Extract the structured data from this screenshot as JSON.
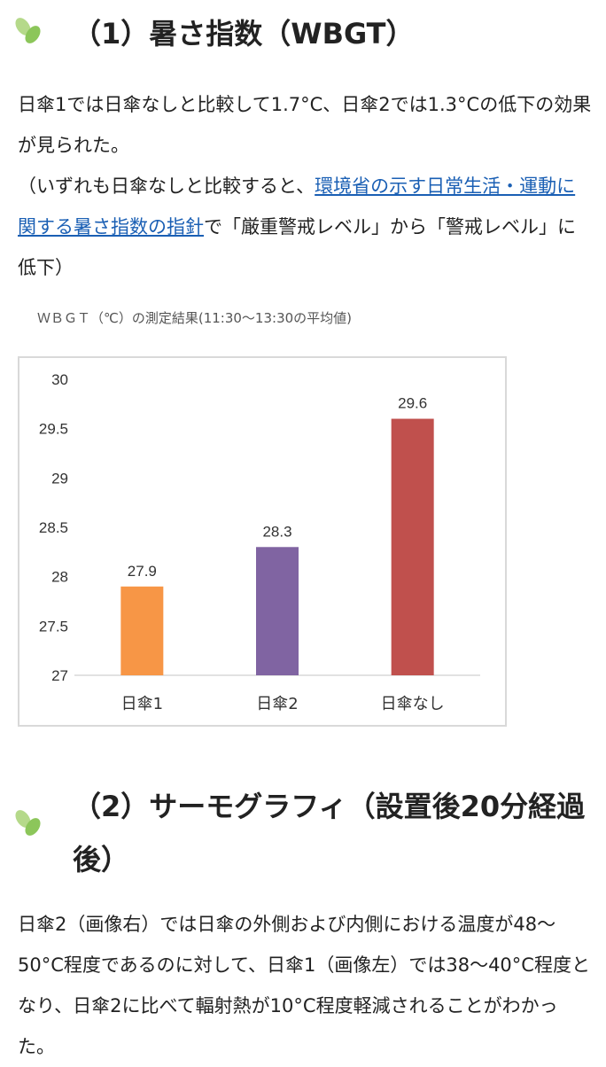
{
  "section1": {
    "heading": "（1）暑さ指数（WBGT）",
    "para_line1": "日傘1では日傘なしと比較して1.7°C、日傘2では1.3°C",
    "para_line2": "の低下の効果が見られた。",
    "para_line3_prefix": "（いずれも日傘なしと比較すると、",
    "link_text": "環境省の示す日常生活・運動に関する暑さ指数の指針",
    "para_line3_suffix": "で「厳重警戒レベル」から「警戒レベル」に低下）"
  },
  "chart_caption": "ＷＢＧＴ（℃）の測定結果(11:30〜13:30の平均値)",
  "chart_data": {
    "type": "bar",
    "title": "ＷＢＧＴ（℃）の測定結果(11:30〜13:30の平均値)",
    "categories": [
      "日傘1",
      "日傘2",
      "日傘なし"
    ],
    "values": [
      27.9,
      28.3,
      29.6
    ],
    "data_labels": [
      "27.9",
      "28.3",
      "29.6"
    ],
    "colors": [
      "#f79646",
      "#8064a2",
      "#c0504d"
    ],
    "ylim": [
      27,
      30
    ],
    "yticks": [
      27,
      27.5,
      28,
      28.5,
      29,
      29.5,
      30
    ],
    "ytick_labels": [
      "27",
      "27.5",
      "28",
      "28.5",
      "29",
      "29.5",
      "30"
    ],
    "grid": false,
    "xlabel": "",
    "ylabel": ""
  },
  "section2": {
    "heading": "（2）サーモグラフィ（設置後20分経過後）",
    "paragraph": "日傘2（画像右）では日傘の外側および内側における温度が48〜50°C程度であるのに対して、日傘1（画像左）では38〜40°C程度となり、日傘2に比べて輻射熱が10°C程度軽減されることがわかった。"
  },
  "icons": {
    "section_marker": "leaf-icon",
    "leaf_color_light": "#b5d98a",
    "leaf_color_dark": "#7fbf4d"
  }
}
